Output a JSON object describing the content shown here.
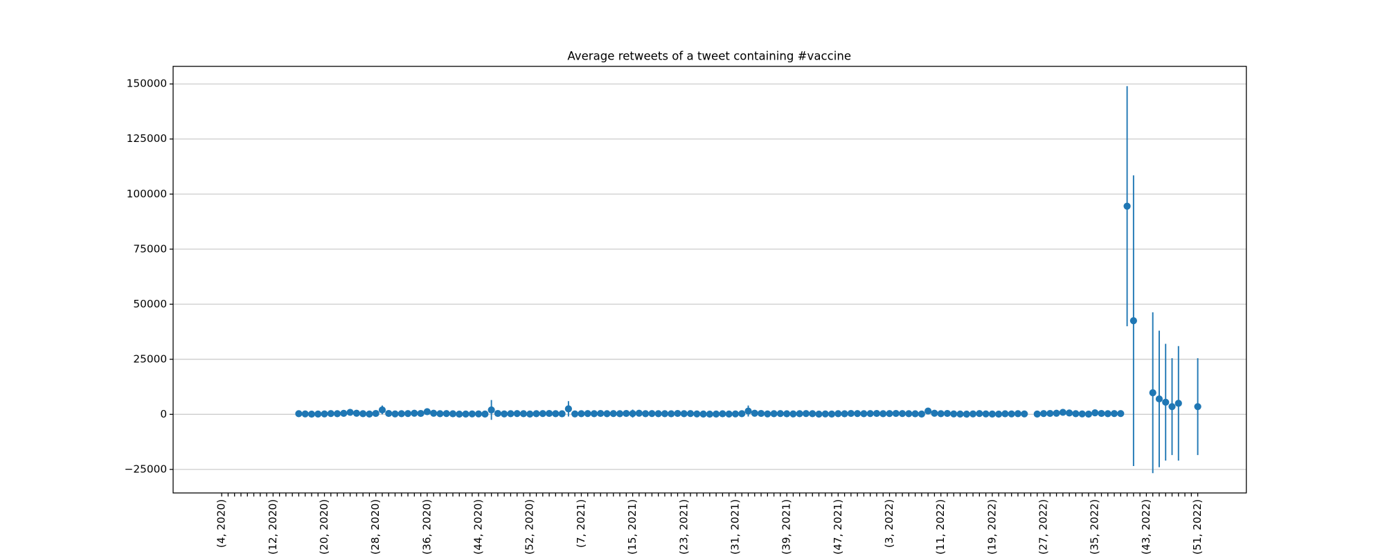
{
  "chart_data": {
    "type": "errorbar",
    "title": "Average retweets of a tweet containing #vaccine",
    "categories": [
      "(4, 2020)",
      null,
      null,
      null,
      null,
      null,
      null,
      null,
      "(12, 2020)",
      null,
      null,
      null,
      null,
      null,
      null,
      null,
      "(20, 2020)",
      null,
      null,
      null,
      null,
      null,
      null,
      null,
      "(28, 2020)",
      null,
      null,
      null,
      null,
      null,
      null,
      null,
      "(36, 2020)",
      null,
      null,
      null,
      null,
      null,
      null,
      null,
      "(44, 2020)",
      null,
      null,
      null,
      null,
      null,
      null,
      null,
      "(52, 2020)",
      null,
      null,
      null,
      null,
      null,
      null,
      null,
      "(7, 2021)",
      null,
      null,
      null,
      null,
      null,
      null,
      null,
      "(15, 2021)",
      null,
      null,
      null,
      null,
      null,
      null,
      null,
      "(23, 2021)",
      null,
      null,
      null,
      null,
      null,
      null,
      null,
      "(31, 2021)",
      null,
      null,
      null,
      null,
      null,
      null,
      null,
      "(39, 2021)",
      null,
      null,
      null,
      null,
      null,
      null,
      null,
      "(47, 2021)",
      null,
      null,
      null,
      null,
      null,
      null,
      null,
      "(3, 2022)",
      null,
      null,
      null,
      null,
      null,
      null,
      null,
      "(11, 2022)",
      null,
      null,
      null,
      null,
      null,
      null,
      null,
      "(19, 2022)",
      null,
      null,
      null,
      null,
      null,
      null,
      null,
      "(27, 2022)",
      null,
      null,
      null,
      null,
      null,
      null,
      null,
      "(35, 2022)",
      null,
      null,
      null,
      null,
      null,
      null,
      null,
      "(43, 2022)",
      null,
      null,
      null,
      null,
      null,
      null,
      null,
      "(51, 2022)"
    ],
    "values": [
      null,
      null,
      null,
      null,
      null,
      null,
      null,
      null,
      null,
      null,
      null,
      null,
      300,
      200,
      100,
      150,
      200,
      350,
      300,
      450,
      900,
      500,
      300,
      150,
      400,
      2000,
      400,
      200,
      300,
      350,
      500,
      400,
      1200,
      500,
      300,
      350,
      250,
      100,
      150,
      200,
      200,
      150,
      2000,
      400,
      200,
      300,
      350,
      300,
      150,
      300,
      350,
      400,
      300,
      250,
      2500,
      200,
      300,
      350,
      300,
      400,
      300,
      350,
      300,
      400,
      350,
      500,
      300,
      350,
      300,
      300,
      250,
      400,
      300,
      350,
      200,
      150,
      100,
      150,
      250,
      150,
      200,
      300,
      1500,
      500,
      400,
      200,
      300,
      350,
      250,
      200,
      300,
      350,
      300,
      100,
      200,
      150,
      300,
      250,
      400,
      350,
      300,
      350,
      400,
      300,
      350,
      400,
      350,
      300,
      250,
      150,
      1500,
      500,
      300,
      400,
      200,
      150,
      100,
      200,
      350,
      200,
      150,
      100,
      250,
      200,
      300,
      200,
      null,
      150,
      350,
      400,
      500,
      900,
      600,
      300,
      200,
      100,
      700,
      400,
      300,
      350,
      350,
      94500,
      42500,
      null,
      null,
      9800,
      7000,
      5500,
      3500,
      5000,
      null,
      null,
      3500
    ],
    "errors": [
      null,
      null,
      null,
      null,
      null,
      null,
      null,
      null,
      null,
      null,
      null,
      null,
      400,
      400,
      400,
      400,
      400,
      400,
      400,
      400,
      500,
      400,
      400,
      400,
      400,
      2000,
      400,
      400,
      400,
      400,
      400,
      400,
      1000,
      400,
      400,
      400,
      400,
      400,
      400,
      400,
      400,
      400,
      4500,
      400,
      400,
      400,
      400,
      400,
      400,
      400,
      400,
      400,
      400,
      400,
      3500,
      400,
      400,
      400,
      400,
      400,
      400,
      400,
      400,
      400,
      1800,
      400,
      400,
      400,
      400,
      400,
      400,
      400,
      400,
      400,
      400,
      400,
      400,
      400,
      400,
      400,
      400,
      400,
      2500,
      400,
      400,
      400,
      400,
      400,
      400,
      400,
      400,
      400,
      400,
      400,
      400,
      400,
      400,
      400,
      400,
      400,
      400,
      400,
      400,
      400,
      400,
      400,
      1000,
      400,
      400,
      400,
      1000,
      400,
      400,
      400,
      400,
      400,
      400,
      400,
      400,
      400,
      400,
      400,
      400,
      400,
      400,
      400,
      null,
      400,
      400,
      400,
      400,
      400,
      400,
      400,
      400,
      400,
      400,
      400,
      400,
      400,
      400,
      54500,
      66000,
      null,
      null,
      36500,
      31000,
      26500,
      22000,
      26000,
      null,
      null,
      22000
    ],
    "color": "#1f77b4",
    "ylim": [
      -35700,
      158000
    ],
    "yticks": [
      {
        "value": -25000,
        "label": "−25000"
      },
      0,
      25000,
      50000,
      75000,
      100000,
      125000,
      150000
    ],
    "grid": true
  }
}
